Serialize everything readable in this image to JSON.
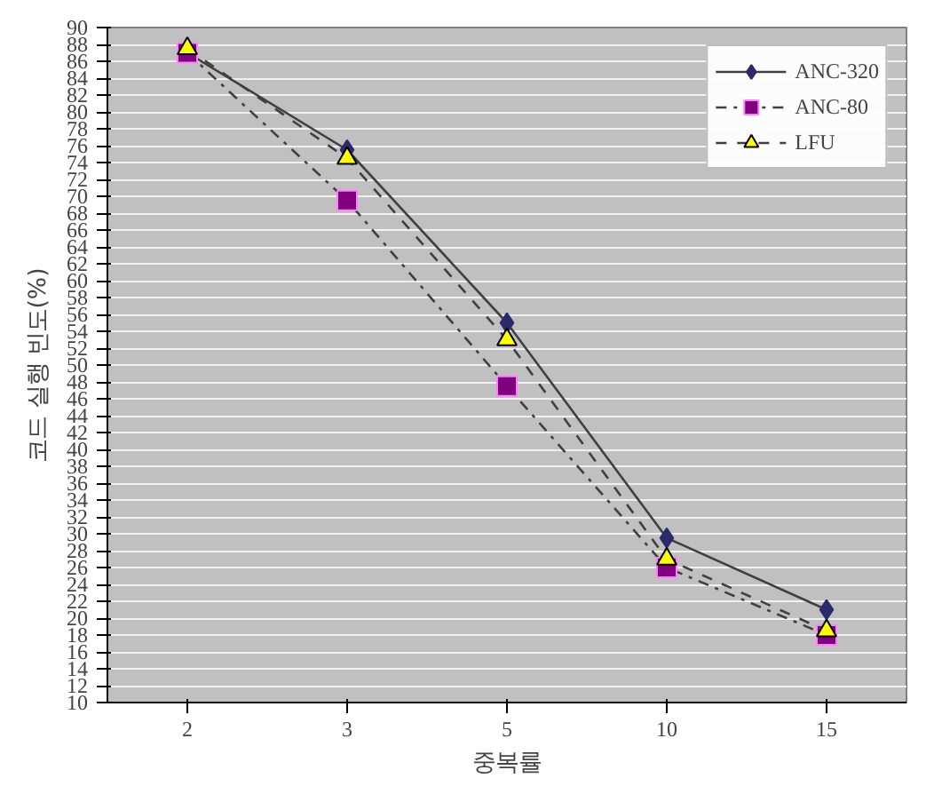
{
  "chart_data": {
    "type": "line",
    "xlabel": "중복률",
    "ylabel": "코드 실행 빈도(%)",
    "categories": [
      "2",
      "3",
      "5",
      "10",
      "15"
    ],
    "series": [
      {
        "name": "ANC-320",
        "color": "#2b2b6b",
        "marker": "diamond",
        "line_style": "solid",
        "values": [
          87,
          75.5,
          55,
          29.5,
          21
        ]
      },
      {
        "name": "ANC-80",
        "color": "#800080",
        "marker": "square",
        "line_style": "dashdot",
        "values": [
          87,
          69.5,
          47.5,
          26,
          18
        ]
      },
      {
        "name": "LFU",
        "color": "#ffff00",
        "marker": "triangle",
        "line_style": "dashed",
        "values": [
          87.5,
          74.5,
          53,
          27,
          18.5
        ]
      }
    ],
    "ylim": [
      10,
      90
    ],
    "yticks": [
      10,
      12,
      14,
      16,
      18,
      20,
      22,
      24,
      26,
      28,
      30,
      32,
      34,
      36,
      38,
      40,
      42,
      44,
      46,
      48,
      50,
      52,
      54,
      56,
      58,
      60,
      62,
      64,
      66,
      68,
      70,
      72,
      74,
      76,
      78,
      80,
      82,
      84,
      86,
      88,
      90
    ],
    "grid": "y",
    "legend": "top right"
  }
}
